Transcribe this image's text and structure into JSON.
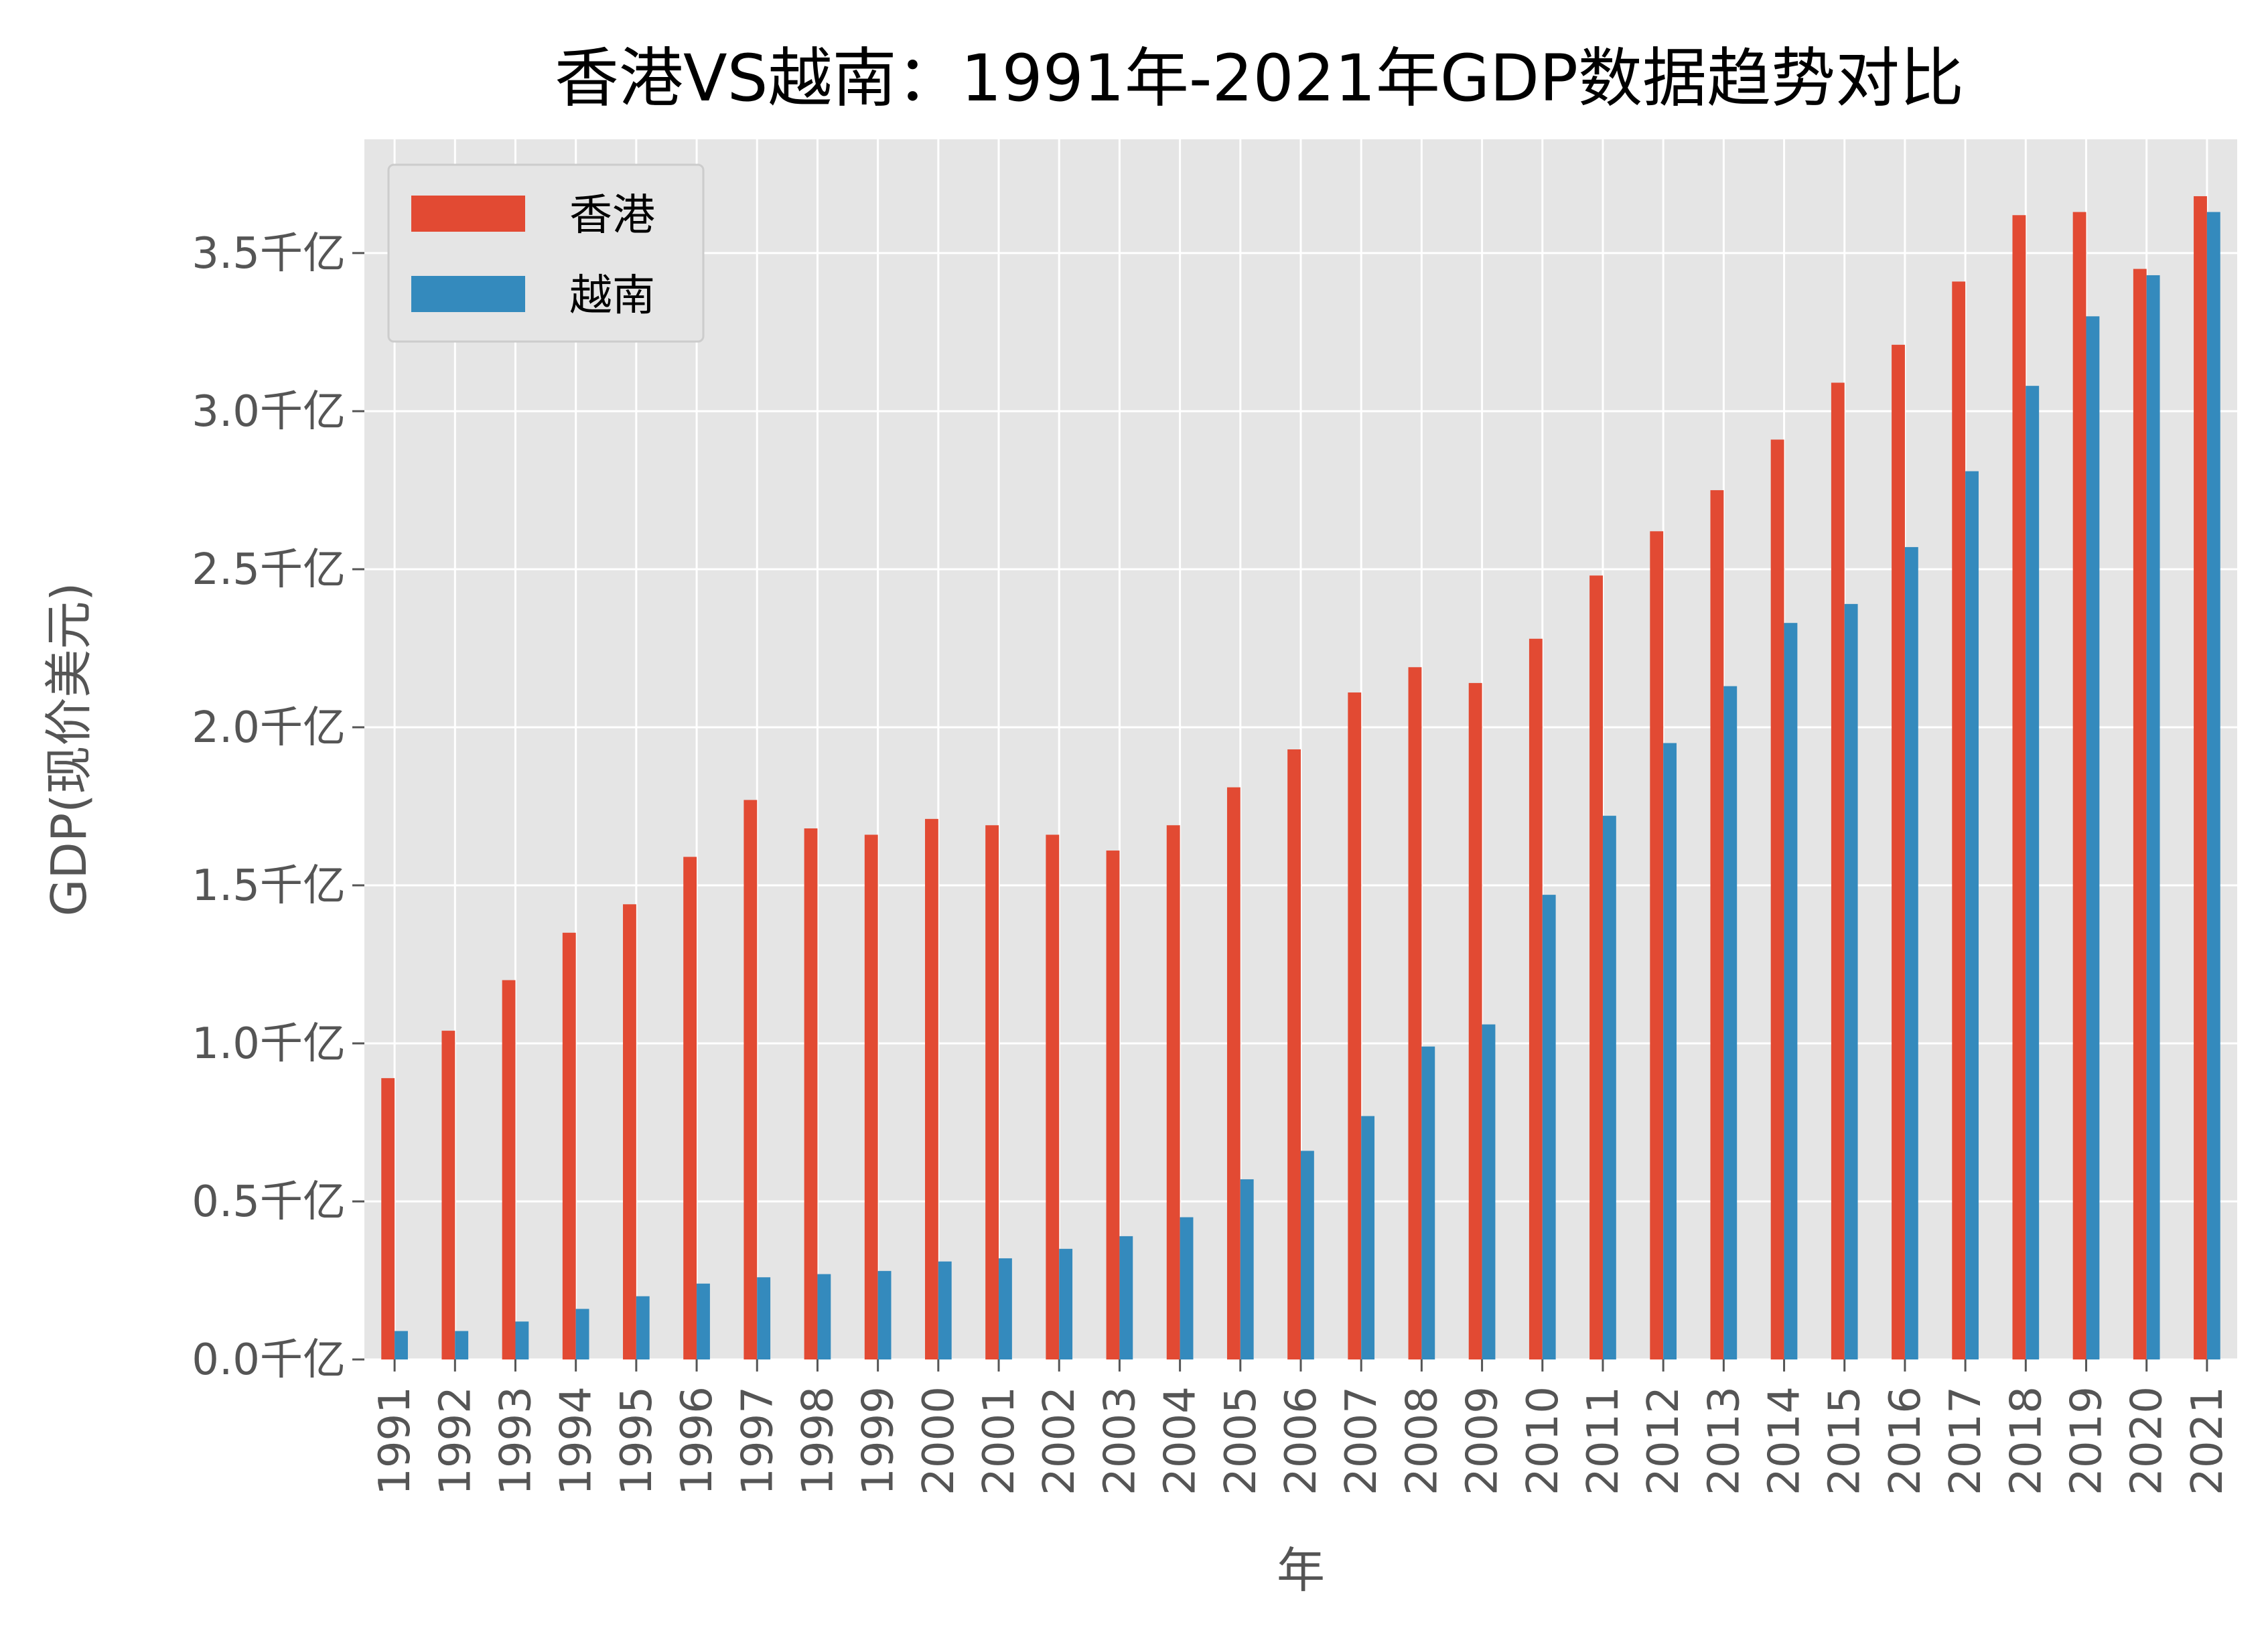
{
  "chart_data": {
    "type": "bar",
    "title": "香港VS越南：1991年-2021年GDP数据趋势对比",
    "xlabel": "年",
    "ylabel": "GDP(现价美元)",
    "ylim": [
      0,
      3.86
    ],
    "y_unit_suffix": "千亿",
    "y_ticks": [
      {
        "value": 0.0,
        "label": "0.0千亿"
      },
      {
        "value": 0.5,
        "label": "0.5千亿"
      },
      {
        "value": 1.0,
        "label": "1.0千亿"
      },
      {
        "value": 1.5,
        "label": "1.5千亿"
      },
      {
        "value": 2.0,
        "label": "2.0千亿"
      },
      {
        "value": 2.5,
        "label": "2.5千亿"
      },
      {
        "value": 3.0,
        "label": "3.0千亿"
      },
      {
        "value": 3.5,
        "label": "3.5千亿"
      }
    ],
    "grid": true,
    "legend_position": "top-left",
    "categories": [
      "1991",
      "1992",
      "1993",
      "1994",
      "1995",
      "1996",
      "1997",
      "1998",
      "1999",
      "2000",
      "2001",
      "2002",
      "2003",
      "2004",
      "2005",
      "2006",
      "2007",
      "2008",
      "2009",
      "2010",
      "2011",
      "2012",
      "2013",
      "2014",
      "2015",
      "2016",
      "2017",
      "2018",
      "2019",
      "2020",
      "2021"
    ],
    "series": [
      {
        "name": "香港",
        "color": "#e24a33",
        "values": [
          0.89,
          1.04,
          1.2,
          1.35,
          1.44,
          1.59,
          1.77,
          1.68,
          1.66,
          1.71,
          1.69,
          1.66,
          1.61,
          1.69,
          1.81,
          1.93,
          2.11,
          2.19,
          2.14,
          2.28,
          2.48,
          2.62,
          2.75,
          2.91,
          3.09,
          3.21,
          3.41,
          3.62,
          3.63,
          3.45,
          3.68
        ]
      },
      {
        "name": "越南",
        "color": "#348abd",
        "values": [
          0.09,
          0.09,
          0.12,
          0.16,
          0.2,
          0.24,
          0.26,
          0.27,
          0.28,
          0.31,
          0.32,
          0.35,
          0.39,
          0.45,
          0.57,
          0.66,
          0.77,
          0.99,
          1.06,
          1.47,
          1.72,
          1.95,
          2.13,
          2.33,
          2.39,
          2.57,
          2.81,
          3.08,
          3.3,
          3.43,
          3.63
        ]
      }
    ]
  }
}
